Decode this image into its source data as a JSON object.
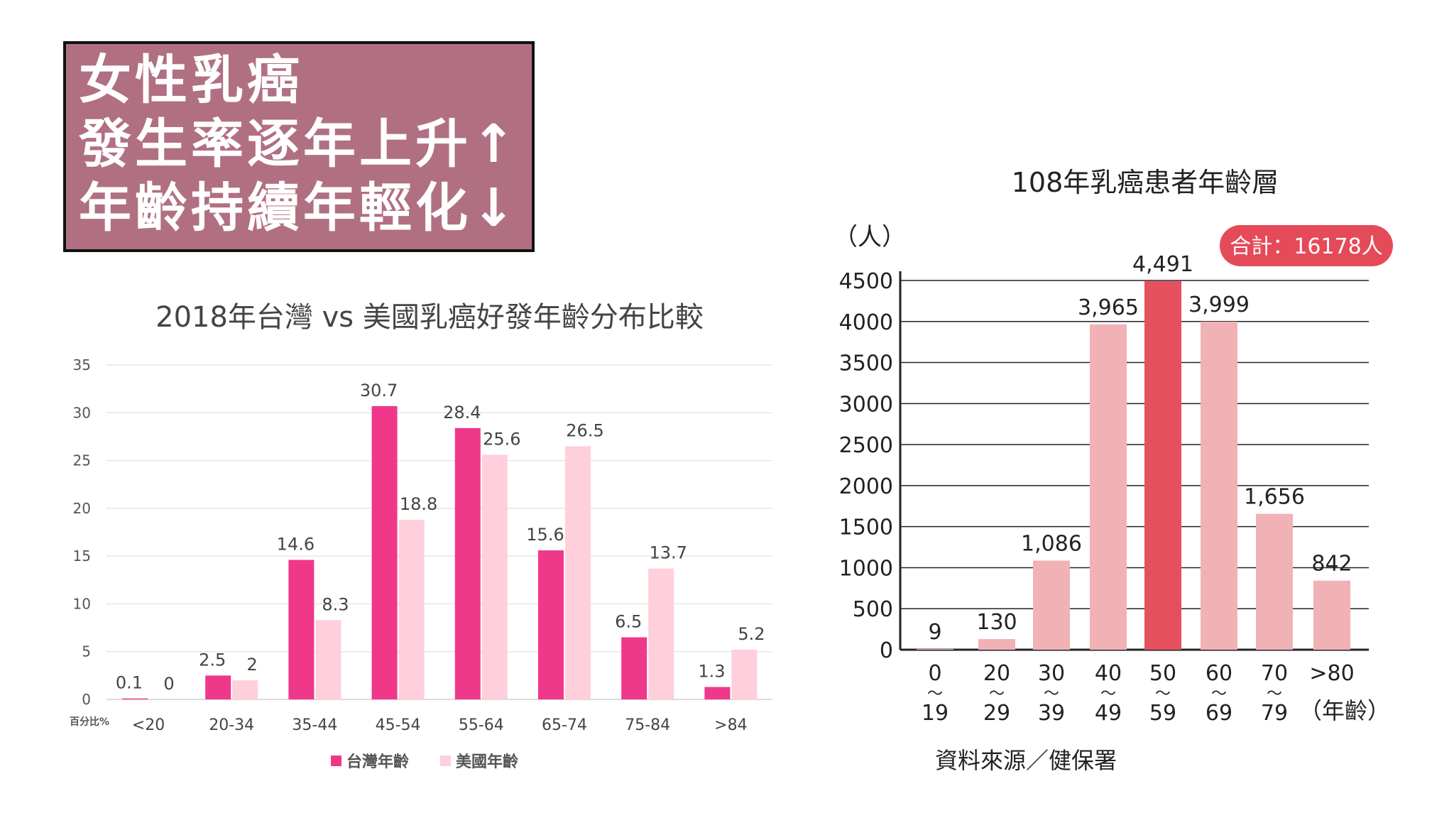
{
  "headline": {
    "lines": [
      "女性乳癌",
      "發生率逐年上升↑",
      "年齡持續年輕化↓"
    ],
    "background": "#b16f82"
  },
  "chart_data": [
    {
      "type": "bar",
      "title": "2018年台灣 vs 美國乳癌好發年齡分布比較",
      "ylabel": "百分比%",
      "ylim": [
        0,
        35
      ],
      "yticks": [
        0,
        5,
        10,
        15,
        20,
        25,
        30,
        35
      ],
      "grid": true,
      "legend_position": "bottom",
      "categories": [
        "<20",
        "20-34",
        "35-44",
        "45-54",
        "55-64",
        "65-74",
        "75-84",
        ">84"
      ],
      "series": [
        {
          "name": "台灣年齡",
          "color": "#f0388a",
          "values": [
            0.1,
            2.5,
            14.6,
            30.7,
            28.4,
            15.6,
            6.5,
            1.3
          ],
          "labels": [
            "0.1",
            "2.5",
            "14.6",
            "30.7",
            "28.4",
            "15.6",
            "6.5",
            "1.3"
          ]
        },
        {
          "name": "美國年齡",
          "color": "#ffcfdc",
          "values": [
            0,
            2,
            8.3,
            18.8,
            25.6,
            26.5,
            13.7,
            5.2
          ],
          "labels": [
            "0",
            "2",
            "8.3",
            "18.8",
            "25.6",
            "26.5",
            "13.7",
            "5.2"
          ]
        }
      ]
    },
    {
      "type": "bar",
      "title": "108年乳癌患者年齡層",
      "ylabel": "（人）",
      "xlabel": "（年齡）",
      "ylim": [
        0,
        4500
      ],
      "yticks": [
        0,
        500,
        1000,
        1500,
        2000,
        2500,
        3000,
        3500,
        4000,
        4500
      ],
      "grid": true,
      "total_badge": "合計：16178人",
      "source": "資料來源／健保署",
      "categories": [
        {
          "top": "0",
          "bottom": "19"
        },
        {
          "top": "20",
          "bottom": "29"
        },
        {
          "top": "30",
          "bottom": "39"
        },
        {
          "top": "40",
          "bottom": "49"
        },
        {
          "top": "50",
          "bottom": "59"
        },
        {
          "top": "60",
          "bottom": "69"
        },
        {
          "top": "70",
          "bottom": "79"
        },
        {
          "top": ">80",
          "bottom": ""
        }
      ],
      "tilde": "〜",
      "values": [
        9,
        130,
        1086,
        3965,
        4491,
        3999,
        1656,
        842
      ],
      "labels": [
        "9",
        "130",
        "1,086",
        "3,965",
        "4,491",
        "3,999",
        "1,656",
        "842"
      ],
      "bar_color": "#f1b2b5",
      "highlight_color": "#e5505e",
      "highlight_index": 4
    }
  ]
}
